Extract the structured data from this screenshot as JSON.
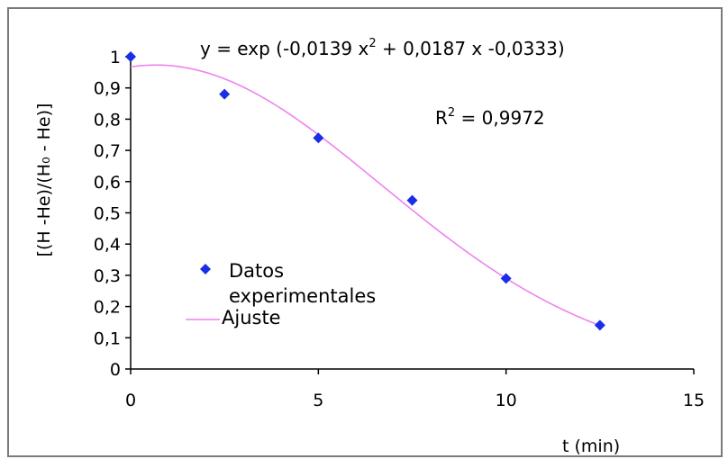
{
  "chart_data": {
    "type": "scatter",
    "ylabel": "[(H -He)/(H₀ - He)]",
    "xlabel": "t (min)",
    "xlim": [
      0,
      15
    ],
    "ylim": [
      0,
      1
    ],
    "x_ticks": [
      "0",
      "5",
      "10",
      "15"
    ],
    "y_ticks": [
      "0",
      "0,1",
      "0,2",
      "0,3",
      "0,4",
      "0,5",
      "0,6",
      "0,7",
      "0,8",
      "0,9",
      "1"
    ],
    "grid": false,
    "legend_position": "lower-left",
    "series": [
      {
        "name": "Datos experimentales",
        "kind": "points",
        "color": "#1a2ee6",
        "marker": "diamond",
        "x": [
          0,
          2.5,
          5,
          7.5,
          10,
          12.5
        ],
        "y": [
          1.0,
          0.88,
          0.74,
          0.54,
          0.29,
          0.14
        ]
      },
      {
        "name": "Ajuste",
        "kind": "line",
        "color": "#ee82ee",
        "coefficients": {
          "a": -0.0139,
          "b": 0.0187,
          "c": -0.0333
        }
      }
    ],
    "annotations": {
      "equation_prefix": "y = exp (-0,0139 x",
      "equation_sup": "2",
      "equation_suffix": " + 0,0187 x -0,0333)",
      "r2_prefix": "R",
      "r2_sup": "2",
      "r2_suffix": " = 0,9972"
    }
  }
}
